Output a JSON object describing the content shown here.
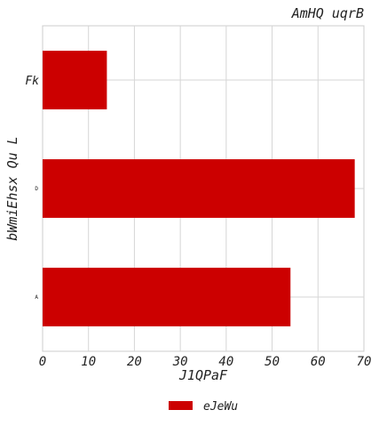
{
  "chart_data": {
    "type": "bar",
    "orientation": "horizontal",
    "title": "AmHQ   uqrB",
    "xlabel": "J1QPaF",
    "ylabel": "bWmiEhsx Qu L",
    "categories": [
      "Fk",
      "D",
      "A"
    ],
    "series": [
      {
        "name": "eJeWu",
        "values": [
          14,
          68,
          54
        ],
        "color": "#cc0000"
      }
    ],
    "xlim": [
      0,
      70
    ],
    "xticks": [
      "0",
      "10",
      "20",
      "30",
      "40",
      "50",
      "60",
      "70"
    ],
    "grid": true,
    "legend": "bottom-center"
  }
}
